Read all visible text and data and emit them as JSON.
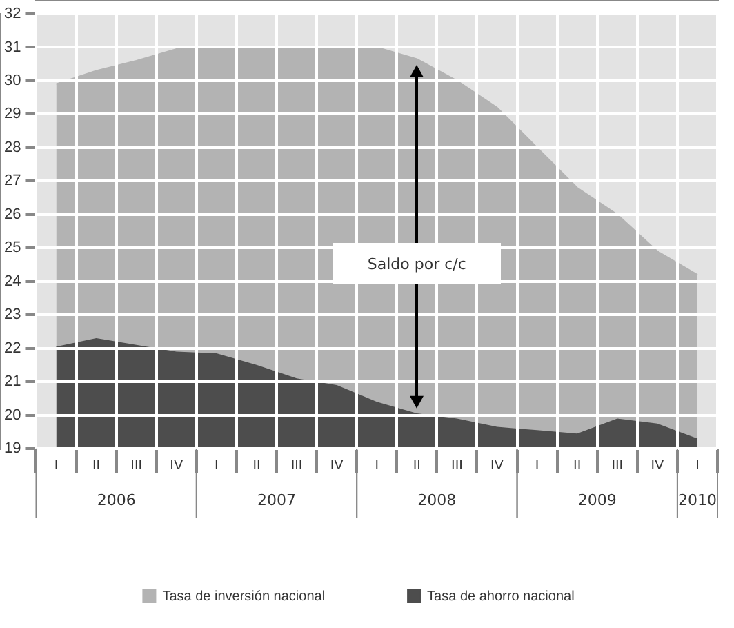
{
  "chart_data": {
    "type": "area",
    "categories": [
      "I",
      "II",
      "III",
      "IV",
      "I",
      "II",
      "III",
      "IV",
      "I",
      "II",
      "III",
      "IV",
      "I",
      "II",
      "III",
      "IV",
      "I"
    ],
    "series": [
      {
        "name": "Tasa de inversión nacional",
        "color": "#b3b3b3",
        "values": [
          29.9,
          30.3,
          30.6,
          30.95,
          31.0,
          31.0,
          30.95,
          31.0,
          31.0,
          30.65,
          30.0,
          29.2,
          28.0,
          26.8,
          26.0,
          24.9,
          24.2
        ]
      },
      {
        "name": "Tasa de ahorro nacional",
        "color": "#4d4d4d",
        "values": [
          22.05,
          22.3,
          22.1,
          21.9,
          21.85,
          21.5,
          21.1,
          20.9,
          20.4,
          20.05,
          19.9,
          19.65,
          19.55,
          19.45,
          19.9,
          19.75,
          19.3
        ]
      }
    ],
    "ylim": [
      19,
      32
    ],
    "yticks": [
      19,
      20,
      21,
      22,
      23,
      24,
      25,
      26,
      27,
      28,
      29,
      30,
      31,
      32
    ],
    "grid": true,
    "legend": "bottom",
    "annotations": [
      "Saldo por c/c",
      "2006",
      "2007",
      "2008",
      "2009",
      "2010"
    ]
  }
}
